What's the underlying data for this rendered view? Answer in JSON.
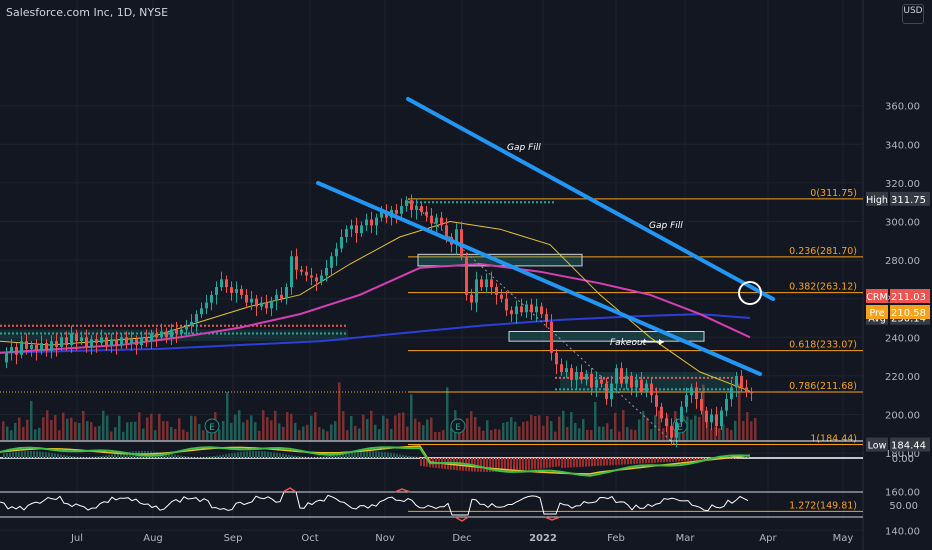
{
  "header": {
    "title": "Salesforce.com Inc, 1D, NYSE"
  },
  "currency": "USD",
  "colors": {
    "background": "#131722",
    "up": "#26a69a",
    "down": "#ef5350",
    "channel": "#2196f3",
    "fib": "#f7a21b",
    "ma50": "#e6c229",
    "ma100": "#d43fb3",
    "ma200": "#2b3fd6"
  },
  "chart_data": {
    "type": "candlestick",
    "title": "Salesforce.com Inc, 1D, NYSE",
    "ylim": [
      130,
      360
    ],
    "y_ticks": [
      "360.00",
      "340.00",
      "320.00",
      "300.00",
      "280.00",
      "260.00",
      "240.00",
      "220.00",
      "200.00",
      "180.00",
      "160.00",
      "140.00"
    ],
    "x_ticks": [
      "Jul",
      "Aug",
      "Sep",
      "Oct",
      "Nov",
      "Dec",
      "2022",
      "Feb",
      "Mar",
      "Apr",
      "May"
    ],
    "fib_levels": [
      {
        "label": "0(311.75)",
        "value": 311.75
      },
      {
        "label": "0.236(281.70)",
        "value": 281.7
      },
      {
        "label": "0.382(263.12)",
        "value": 263.12
      },
      {
        "label": "0.618(233.07)",
        "value": 233.07
      },
      {
        "label": "0.786(211.68)",
        "value": 211.68
      },
      {
        "label": "1(184.44)",
        "value": 184.44
      },
      {
        "label": "1.272(149.81)",
        "value": 149.81
      }
    ],
    "price_labels": [
      {
        "label": "High",
        "value": "311.75",
        "price": 311.75,
        "color": "#363a45"
      },
      {
        "label": "Avg",
        "value": "250.14",
        "price": 250.14,
        "color": "#363a45"
      },
      {
        "label": "CRM",
        "value": "211.03",
        "price": 211.03,
        "color": "#ef5350"
      },
      {
        "label": "Pre",
        "value": "210.58",
        "price": 210.58,
        "color": "#f7a21b"
      },
      {
        "label": "Low",
        "value": "184.44",
        "price": 184.44,
        "color": "#363a45"
      }
    ],
    "annotations": [
      "Gap Fill",
      "Gap Fill",
      "Fakeout"
    ],
    "closes": [
      [
        0,
        227
      ],
      [
        5,
        232
      ],
      [
        10,
        235
      ],
      [
        15,
        231
      ],
      [
        20,
        238
      ],
      [
        25,
        234
      ],
      [
        30,
        236
      ],
      [
        35,
        233
      ],
      [
        40,
        237
      ],
      [
        45,
        233
      ],
      [
        50,
        238
      ],
      [
        55,
        235
      ],
      [
        60,
        240
      ],
      [
        65,
        236
      ],
      [
        70,
        242
      ],
      [
        75,
        238
      ],
      [
        80,
        240
      ],
      [
        85,
        235
      ],
      [
        90,
        239
      ],
      [
        95,
        237
      ],
      [
        100,
        240
      ],
      [
        105,
        236
      ],
      [
        110,
        239
      ],
      [
        115,
        236
      ],
      [
        120,
        240
      ],
      [
        125,
        237
      ],
      [
        130,
        239
      ],
      [
        135,
        236
      ],
      [
        140,
        240
      ],
      [
        145,
        238
      ],
      [
        150,
        242
      ],
      [
        155,
        240
      ],
      [
        160,
        243
      ],
      [
        165,
        240
      ],
      [
        170,
        244
      ],
      [
        175,
        242
      ],
      [
        180,
        244
      ],
      [
        185,
        246
      ],
      [
        190,
        248
      ],
      [
        195,
        252
      ],
      [
        200,
        255
      ],
      [
        205,
        258
      ],
      [
        210,
        262
      ],
      [
        215,
        266
      ],
      [
        220,
        270
      ],
      [
        225,
        266
      ],
      [
        230,
        263
      ],
      [
        235,
        265
      ],
      [
        240,
        262
      ],
      [
        245,
        258
      ],
      [
        250,
        260
      ],
      [
        255,
        256
      ],
      [
        260,
        258
      ],
      [
        265,
        255
      ],
      [
        270,
        259
      ],
      [
        275,
        262
      ],
      [
        280,
        260
      ],
      [
        285,
        266
      ],
      [
        290,
        282
      ],
      [
        295,
        275
      ],
      [
        300,
        274
      ],
      [
        305,
        272
      ],
      [
        310,
        271
      ],
      [
        315,
        269
      ],
      [
        320,
        272
      ],
      [
        325,
        276
      ],
      [
        330,
        282
      ],
      [
        335,
        286
      ],
      [
        340,
        292
      ],
      [
        345,
        296
      ],
      [
        350,
        298
      ],
      [
        355,
        294
      ],
      [
        360,
        298
      ],
      [
        365,
        301
      ],
      [
        370,
        298
      ],
      [
        375,
        302
      ],
      [
        380,
        305
      ],
      [
        385,
        302
      ],
      [
        390,
        306
      ],
      [
        395,
        304
      ],
      [
        400,
        308
      ],
      [
        405,
        311
      ],
      [
        410,
        306
      ],
      [
        415,
        308
      ],
      [
        420,
        305
      ],
      [
        425,
        303
      ],
      [
        430,
        299
      ],
      [
        435,
        302
      ],
      [
        440,
        298
      ],
      [
        445,
        292
      ],
      [
        450,
        288
      ],
      [
        455,
        296
      ],
      [
        460,
        282
      ],
      [
        465,
        262
      ],
      [
        470,
        258
      ],
      [
        475,
        270
      ],
      [
        480,
        266
      ],
      [
        485,
        270
      ],
      [
        490,
        266
      ],
      [
        495,
        262
      ],
      [
        500,
        260
      ],
      [
        505,
        254
      ],
      [
        510,
        252
      ],
      [
        515,
        256
      ],
      [
        520,
        253
      ],
      [
        525,
        257
      ],
      [
        530,
        253
      ],
      [
        535,
        256
      ],
      [
        540,
        252
      ],
      [
        545,
        248
      ],
      [
        550,
        232
      ],
      [
        555,
        226
      ],
      [
        560,
        222
      ],
      [
        565,
        224
      ],
      [
        570,
        218
      ],
      [
        575,
        222
      ],
      [
        580,
        218
      ],
      [
        585,
        221
      ],
      [
        590,
        214
      ],
      [
        595,
        218
      ],
      [
        600,
        216
      ],
      [
        605,
        208
      ],
      [
        610,
        216
      ],
      [
        615,
        224
      ],
      [
        620,
        216
      ],
      [
        625,
        220
      ],
      [
        630,
        214
      ],
      [
        635,
        218
      ],
      [
        640,
        212
      ],
      [
        645,
        216
      ],
      [
        650,
        210
      ],
      [
        655,
        204
      ],
      [
        660,
        198
      ],
      [
        665,
        194
      ],
      [
        670,
        188
      ],
      [
        675,
        196
      ],
      [
        680,
        204
      ],
      [
        685,
        210
      ],
      [
        690,
        214
      ],
      [
        695,
        208
      ],
      [
        700,
        202
      ],
      [
        705,
        196
      ],
      [
        710,
        200
      ],
      [
        715,
        194
      ],
      [
        720,
        202
      ],
      [
        725,
        208
      ],
      [
        730,
        214
      ],
      [
        735,
        220
      ],
      [
        740,
        214
      ],
      [
        745,
        212
      ],
      [
        750,
        211
      ]
    ],
    "ma50": [
      [
        0,
        238
      ],
      [
        50,
        236
      ],
      [
        100,
        238
      ],
      [
        150,
        240
      ],
      [
        200,
        248
      ],
      [
        250,
        256
      ],
      [
        300,
        262
      ],
      [
        350,
        278
      ],
      [
        400,
        292
      ],
      [
        450,
        300
      ],
      [
        500,
        296
      ],
      [
        550,
        288
      ],
      [
        600,
        262
      ],
      [
        650,
        240
      ],
      [
        700,
        222
      ],
      [
        750,
        212
      ]
    ],
    "ma100": [
      [
        0,
        232
      ],
      [
        60,
        234
      ],
      [
        120,
        236
      ],
      [
        180,
        240
      ],
      [
        240,
        245
      ],
      [
        300,
        252
      ],
      [
        360,
        262
      ],
      [
        420,
        276
      ],
      [
        480,
        278
      ],
      [
        540,
        274
      ],
      [
        600,
        268
      ],
      [
        650,
        262
      ],
      [
        700,
        252
      ],
      [
        750,
        240
      ]
    ],
    "ma200": [
      [
        0,
        232
      ],
      [
        80,
        233
      ],
      [
        160,
        234
      ],
      [
        240,
        236
      ],
      [
        320,
        238
      ],
      [
        400,
        242
      ],
      [
        480,
        246
      ],
      [
        560,
        249
      ],
      [
        640,
        251
      ],
      [
        700,
        252
      ],
      [
        750,
        250
      ]
    ]
  }
}
